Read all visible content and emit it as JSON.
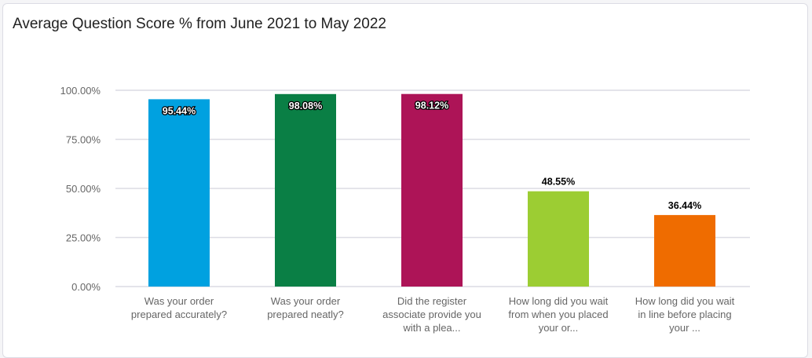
{
  "chart_data": {
    "type": "bar",
    "title": "Average Question Score % from June 2021 to May 2022",
    "categories": [
      [
        "Was your order",
        "prepared accurately?"
      ],
      [
        "Was your order",
        "prepared neatly?"
      ],
      [
        "Did the register",
        "associate provide you",
        "with a plea..."
      ],
      [
        "How long did you wait",
        "from when you placed",
        "your or..."
      ],
      [
        "How long did you wait",
        "in line before placing",
        "your ..."
      ]
    ],
    "values": [
      95.44,
      98.08,
      98.12,
      48.55,
      36.44
    ],
    "data_labels": [
      "95.44%",
      "98.08%",
      "98.12%",
      "48.55%",
      "36.44%"
    ],
    "colors": [
      "#00a1e0",
      "#0a7f45",
      "#ad1457",
      "#9ccd33",
      "#ef6c00"
    ],
    "ylim": [
      0,
      100
    ],
    "yticks": [
      0,
      25,
      50,
      75,
      100
    ],
    "ytick_labels": [
      "0.00%",
      "25.00%",
      "50.00%",
      "75.00%",
      "100.00%"
    ],
    "grid": true,
    "legend": "none"
  }
}
